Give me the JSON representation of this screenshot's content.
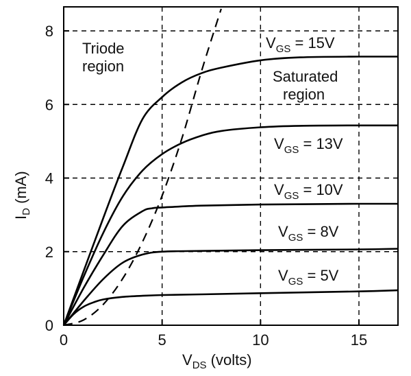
{
  "chart_data": {
    "type": "line",
    "xlabel": {
      "main": "V",
      "sub": "DS",
      "rest": " (volts)"
    },
    "ylabel": {
      "main": "I",
      "sub": "D",
      "rest": " (mA)"
    },
    "xlim": [
      0,
      17
    ],
    "ylim": [
      0,
      8.7
    ],
    "x_ticks": [
      "0",
      "5",
      "10",
      "15"
    ],
    "y_ticks": [
      "0",
      "2",
      "4",
      "6",
      "8"
    ],
    "grid": "dashed",
    "annotations": {
      "triode": [
        "Triode",
        "region"
      ],
      "saturated": [
        "Saturated",
        "region"
      ]
    },
    "series": [
      {
        "label": {
          "main": "V",
          "sub": "GS",
          "rest": " = 15V"
        },
        "x": [
          0,
          1,
          2,
          3,
          4,
          5,
          6,
          7,
          8,
          10,
          12,
          15,
          17
        ],
        "y": [
          0,
          1.45,
          2.9,
          4.3,
          5.6,
          6.2,
          6.6,
          6.85,
          7.0,
          7.2,
          7.28,
          7.3,
          7.3
        ]
      },
      {
        "label": {
          "main": "V",
          "sub": "GS",
          "rest": " = 13V"
        },
        "x": [
          0,
          1,
          2,
          3,
          4,
          5,
          6,
          7,
          8,
          10,
          12,
          15,
          17
        ],
        "y": [
          0,
          1.3,
          2.5,
          3.5,
          4.2,
          4.65,
          4.95,
          5.15,
          5.28,
          5.38,
          5.42,
          5.43,
          5.43
        ]
      },
      {
        "label": {
          "main": "V",
          "sub": "GS",
          "rest": " = 10V"
        },
        "x": [
          0,
          1,
          2,
          3,
          4,
          4.5,
          5,
          7,
          10,
          15,
          17
        ],
        "y": [
          0,
          1.0,
          1.9,
          2.7,
          3.1,
          3.18,
          3.2,
          3.25,
          3.28,
          3.3,
          3.3
        ]
      },
      {
        "label": {
          "main": "V",
          "sub": "GS",
          "rest": " = 8V"
        },
        "x": [
          0,
          1,
          2,
          3,
          4,
          5,
          7,
          10,
          15,
          17
        ],
        "y": [
          0,
          0.65,
          1.25,
          1.7,
          1.92,
          2.0,
          2.02,
          2.04,
          2.06,
          2.08
        ]
      },
      {
        "label": {
          "main": "V",
          "sub": "GS",
          "rest": " = 5V"
        },
        "x": [
          0,
          0.5,
          1,
          1.5,
          2,
          3,
          4,
          5,
          7,
          10,
          15,
          17
        ],
        "y": [
          0,
          0.3,
          0.5,
          0.62,
          0.7,
          0.77,
          0.8,
          0.82,
          0.84,
          0.87,
          0.92,
          0.95
        ]
      }
    ],
    "boundary": {
      "style": "dashed",
      "x": [
        0,
        1,
        2,
        3,
        4,
        5,
        6,
        7,
        8
      ],
      "y": [
        0,
        0.14,
        0.56,
        1.27,
        2.26,
        3.52,
        5.07,
        6.9,
        8.6
      ]
    }
  }
}
